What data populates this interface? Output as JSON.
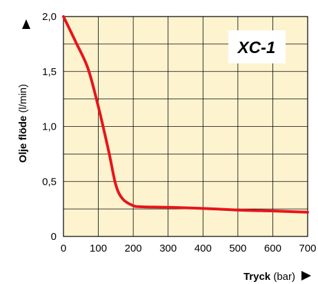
{
  "chart_data": {
    "type": "line",
    "badge": "XC-1",
    "xlabel_bold": "Tryck",
    "xlabel_unit": "(bar)",
    "ylabel_bold": "Olje flöde",
    "ylabel_unit": "(l/min)",
    "xlim": [
      0,
      700
    ],
    "ylim": [
      0,
      2.0
    ],
    "x_ticks": [
      0,
      100,
      200,
      300,
      400,
      500,
      600,
      700
    ],
    "x_tick_labels": [
      "0",
      "100",
      "200",
      "300",
      "400",
      "500",
      "600",
      "700"
    ],
    "y_ticks": [
      0,
      0.5,
      1.0,
      1.5,
      2.0
    ],
    "y_tick_labels": [
      "0",
      "0,5",
      "1,0",
      "1,5",
      "2,0"
    ],
    "grid": true,
    "series": [
      {
        "x": [
          0,
          35,
          70,
          100,
          130,
          150,
          170,
          200,
          225,
          300,
          400,
          500,
          550,
          600,
          700
        ],
        "y": [
          2.0,
          1.77,
          1.53,
          1.18,
          0.77,
          0.47,
          0.34,
          0.28,
          0.27,
          0.265,
          0.255,
          0.24,
          0.235,
          0.232,
          0.22
        ]
      }
    ],
    "colors": {
      "plot_background": "#FDF3CF",
      "line": "#E8141B",
      "grid": "#000000",
      "badge_background": "#FFFFFF"
    }
  }
}
